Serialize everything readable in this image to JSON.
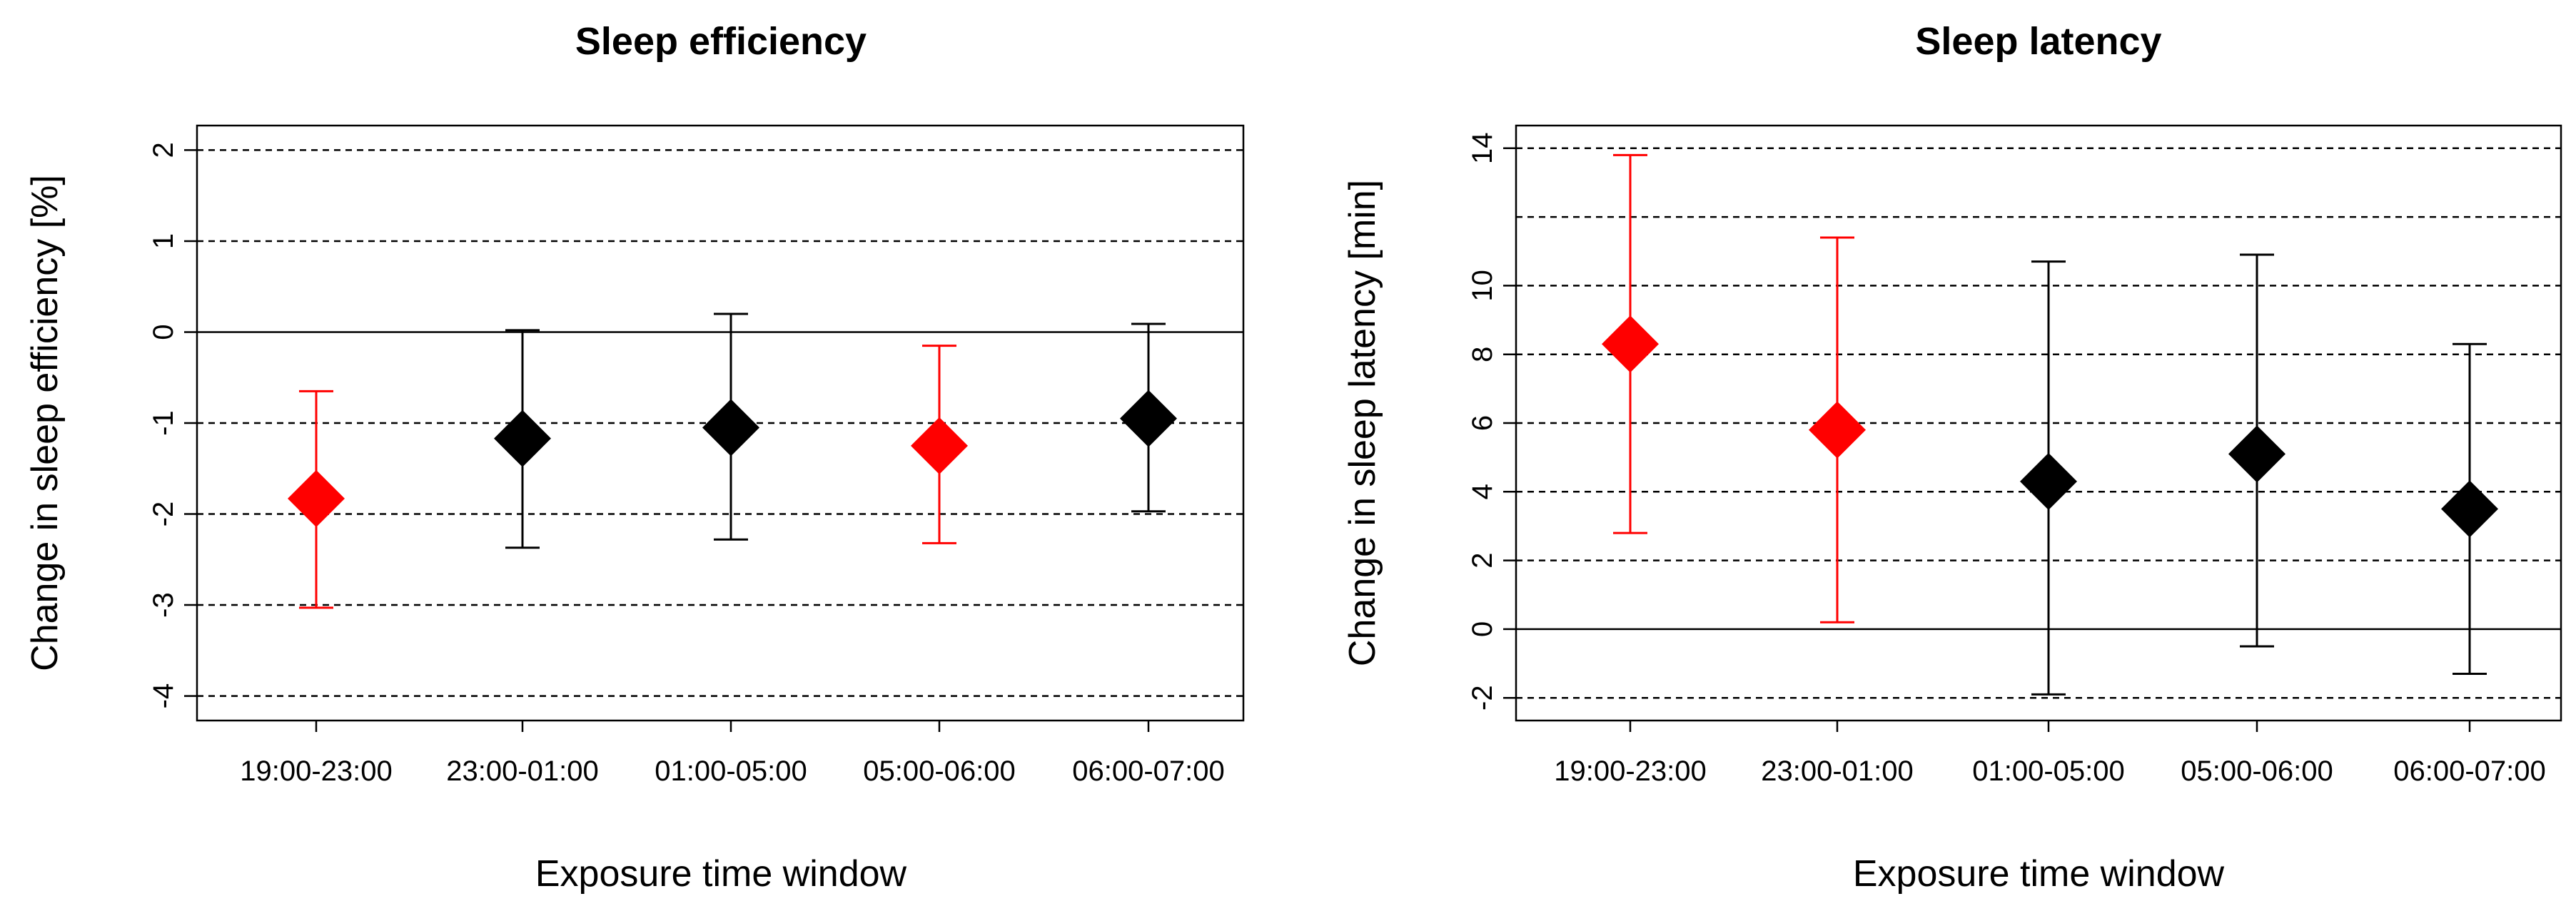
{
  "chart_data": [
    {
      "type": "scatter",
      "title": "Sleep efficiency",
      "xlabel": "Exposure time window",
      "ylabel": "Change in sleep efficiency [%]",
      "categories": [
        "19:00-23:00",
        "23:00-01:00",
        "01:00-05:00",
        "05:00-06:00",
        "06:00-07:00"
      ],
      "values": [
        -1.83,
        -1.17,
        -1.05,
        -1.25,
        -0.95
      ],
      "lower": [
        -3.03,
        -2.37,
        -2.28,
        -2.32,
        -1.97
      ],
      "upper": [
        -0.65,
        0.02,
        0.2,
        -0.15,
        0.09
      ],
      "point_colors": [
        "#ff0000",
        "#000000",
        "#000000",
        "#ff0000",
        "#000000"
      ],
      "yticks": [
        -4,
        -3,
        -2,
        -1,
        0,
        1,
        2
      ],
      "ytick_labels": [
        "-4",
        "-3",
        "-2",
        "-1",
        "0",
        "1",
        "2"
      ],
      "gridlines": [
        -4,
        -3,
        -2,
        -1,
        1,
        2
      ],
      "ylim": [
        -4.27,
        2.27
      ],
      "grid": true,
      "reference_line": 0
    },
    {
      "type": "scatter",
      "title": "Sleep latency",
      "xlabel": "Exposure time window",
      "ylabel": "Change in sleep latency [min]",
      "categories": [
        "19:00-23:00",
        "23:00-01:00",
        "01:00-05:00",
        "05:00-06:00",
        "06:00-07:00"
      ],
      "values": [
        8.3,
        5.8,
        4.3,
        5.1,
        3.5
      ],
      "lower": [
        2.8,
        0.2,
        -1.9,
        -0.5,
        -1.3
      ],
      "upper": [
        13.8,
        11.4,
        10.7,
        10.9,
        8.3
      ],
      "point_colors": [
        "#ff0000",
        "#ff0000",
        "#000000",
        "#000000",
        "#000000"
      ],
      "yticks": [
        -2,
        0,
        2,
        4,
        6,
        8,
        10,
        14
      ],
      "ytick_labels": [
        "-2",
        "0",
        "2",
        "4",
        "6",
        "8",
        "10",
        "14"
      ],
      "gridlines": [
        -2,
        2,
        4,
        6,
        8,
        10,
        12,
        14
      ],
      "ylim": [
        -2.66,
        14.66
      ],
      "grid": true,
      "reference_line": 0
    }
  ]
}
